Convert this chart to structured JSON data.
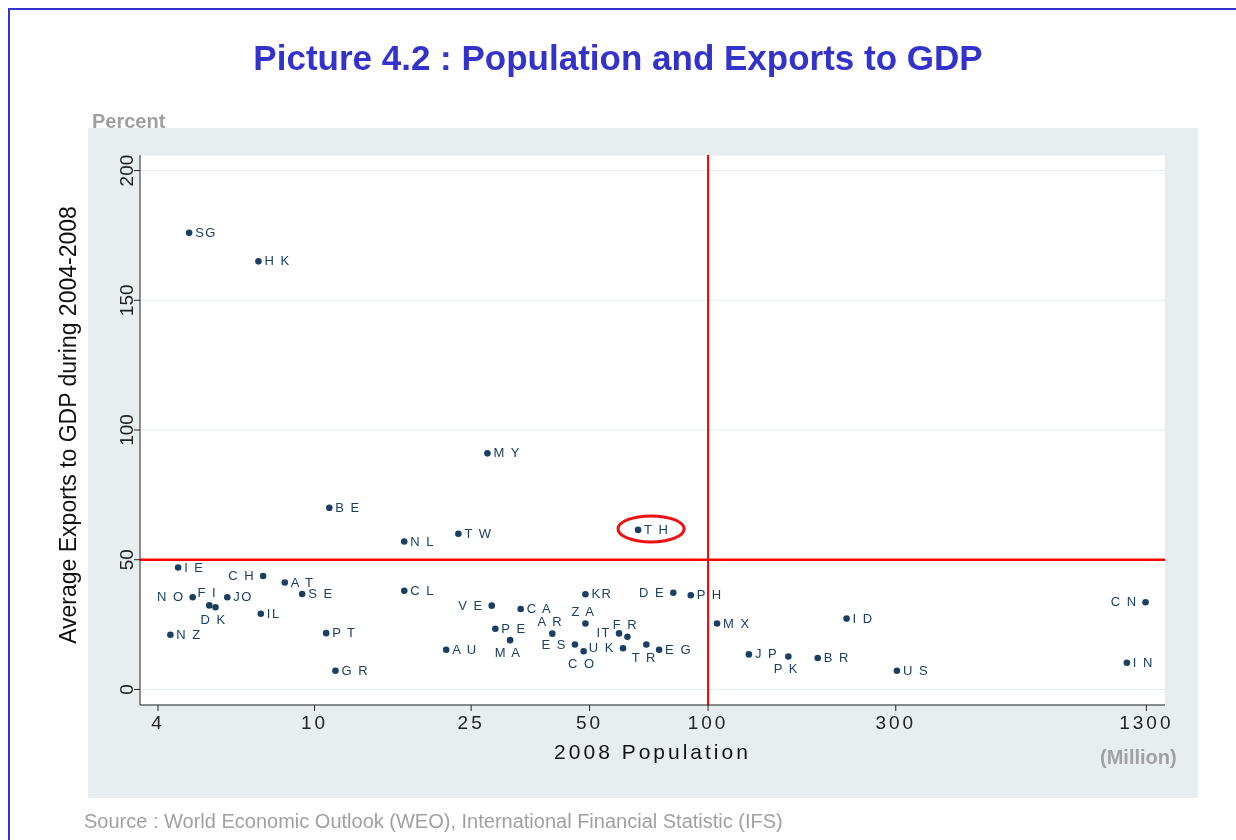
{
  "chart_data": {
    "type": "scatter",
    "title": "Picture 4.2 : Population and Exports to GDP",
    "xlabel": "2008 Population",
    "ylabel": "Average Exports to GDP during 2004-2008",
    "log": "x",
    "xlim": [
      3.6,
      1450
    ],
    "xticks": [
      4,
      10,
      25,
      50,
      100,
      300,
      1300
    ],
    "ylim": [
      -6,
      206
    ],
    "yticks": [
      0,
      50,
      100,
      150,
      200
    ],
    "grid": "y",
    "legend": false,
    "marker": "circle",
    "series": [
      {
        "color": "#1b3f63",
        "x": [
          4.8,
          7.2,
          27.5,
          10.9,
          16.9,
          23.2,
          66.4,
          4.5,
          7.4,
          8.4,
          9.3,
          16.9,
          4.9,
          5.4,
          5.6,
          6.0,
          7.3,
          4.3,
          10.7,
          11.3,
          21.6,
          48.8,
          81.6,
          90.4,
          28.2,
          33.4,
          28.8,
          48.8,
          40.2,
          31.4,
          59.4,
          62.4,
          45.9,
          48.3,
          60.8,
          69.7,
          75.1,
          105.4,
          225,
          1294,
          127,
          160,
          190,
          302,
          1160
        ],
        "values": [
          176,
          165,
          91,
          70,
          57,
          60,
          61.5,
          47,
          43.7,
          41.2,
          36.8,
          38,
          35.5,
          32.4,
          31.7,
          35.5,
          29.2,
          21.1,
          21.7,
          7.2,
          15.3,
          36.7,
          37.3,
          36.3,
          32.3,
          31,
          23.4,
          25.4,
          21.5,
          19,
          21.6,
          20.3,
          17.3,
          14.7,
          15.9,
          17.3,
          15.3,
          25.4,
          27.3,
          33.6,
          13.5,
          12.7,
          12.1,
          7.2,
          10.3
        ]
      }
    ],
    "ref_lines": [
      {
        "axis": "x",
        "value": 100,
        "color": "#ff0000"
      },
      {
        "axis": "y",
        "value": 50,
        "color": "#ff0000"
      }
    ],
    "annotations": [
      "Percent",
      "(Million)",
      "Source : World Economic Outlook (WEO), International Financial Statistic (IFS)",
      {
        "text": "SG",
        "x": 4.8,
        "y": 176
      },
      {
        "text": "H K",
        "x": 7.2,
        "y": 165
      },
      {
        "text": "M Y",
        "x": 27.5,
        "y": 91
      },
      {
        "text": "B E",
        "x": 10.9,
        "y": 70
      },
      {
        "text": "N L",
        "x": 16.9,
        "y": 57
      },
      {
        "text": "T W",
        "x": 23.2,
        "y": 60
      },
      {
        "text": "T H",
        "x": 66.4,
        "y": 61.5
      },
      {
        "text": "I E",
        "x": 4.5,
        "y": 47
      },
      {
        "text": "C H",
        "x": 7.4,
        "y": 43.7
      },
      {
        "text": "A T",
        "x": 8.4,
        "y": 41.2
      },
      {
        "text": "S E",
        "x": 9.3,
        "y": 36.8
      },
      {
        "text": "C L",
        "x": 16.9,
        "y": 38
      },
      {
        "text": "N O",
        "x": 4.9,
        "y": 35.5
      },
      {
        "text": "F I",
        "x": 5.4,
        "y": 32.4
      },
      {
        "text": "D K",
        "x": 5.6,
        "y": 31.7
      },
      {
        "text": "JO",
        "x": 6.0,
        "y": 35.5
      },
      {
        "text": "IL",
        "x": 7.3,
        "y": 29.2
      },
      {
        "text": "N Z",
        "x": 4.3,
        "y": 21.1
      },
      {
        "text": "P T",
        "x": 10.7,
        "y": 21.7
      },
      {
        "text": "G R",
        "x": 11.3,
        "y": 7.2
      },
      {
        "text": "A U",
        "x": 21.6,
        "y": 15.3
      },
      {
        "text": "KR",
        "x": 48.8,
        "y": 36.7
      },
      {
        "text": "D E",
        "x": 81.6,
        "y": 37.3
      },
      {
        "text": "P H",
        "x": 90.4,
        "y": 36.3
      },
      {
        "text": "V E",
        "x": 28.2,
        "y": 32.3
      },
      {
        "text": "C A",
        "x": 33.4,
        "y": 31
      },
      {
        "text": "P E",
        "x": 28.8,
        "y": 23.4
      },
      {
        "text": "Z A",
        "x": 48.8,
        "y": 25.4
      },
      {
        "text": "A R",
        "x": 40.2,
        "y": 21.5
      },
      {
        "text": "M A",
        "x": 31.4,
        "y": 19
      },
      {
        "text": "IT",
        "x": 59.4,
        "y": 21.6
      },
      {
        "text": "F R",
        "x": 62.4,
        "y": 20.3
      },
      {
        "text": "E S",
        "x": 45.9,
        "y": 17.3
      },
      {
        "text": "C O",
        "x": 48.3,
        "y": 14.7
      },
      {
        "text": "U K",
        "x": 60.8,
        "y": 15.9
      },
      {
        "text": "T R",
        "x": 69.7,
        "y": 17.3
      },
      {
        "text": "E G",
        "x": 75.1,
        "y": 15.3
      },
      {
        "text": "M X",
        "x": 105.4,
        "y": 25.4
      },
      {
        "text": "I D",
        "x": 225,
        "y": 27.3
      },
      {
        "text": "C N",
        "x": 1294,
        "y": 33.6
      },
      {
        "text": "J P",
        "x": 127,
        "y": 13.5
      },
      {
        "text": "P K",
        "x": 160,
        "y": 12.7
      },
      {
        "text": "B R",
        "x": 190,
        "y": 12.1
      },
      {
        "text": "U S",
        "x": 302,
        "y": 7.2
      },
      {
        "text": "I N",
        "x": 1160,
        "y": 10.3
      }
    ]
  }
}
